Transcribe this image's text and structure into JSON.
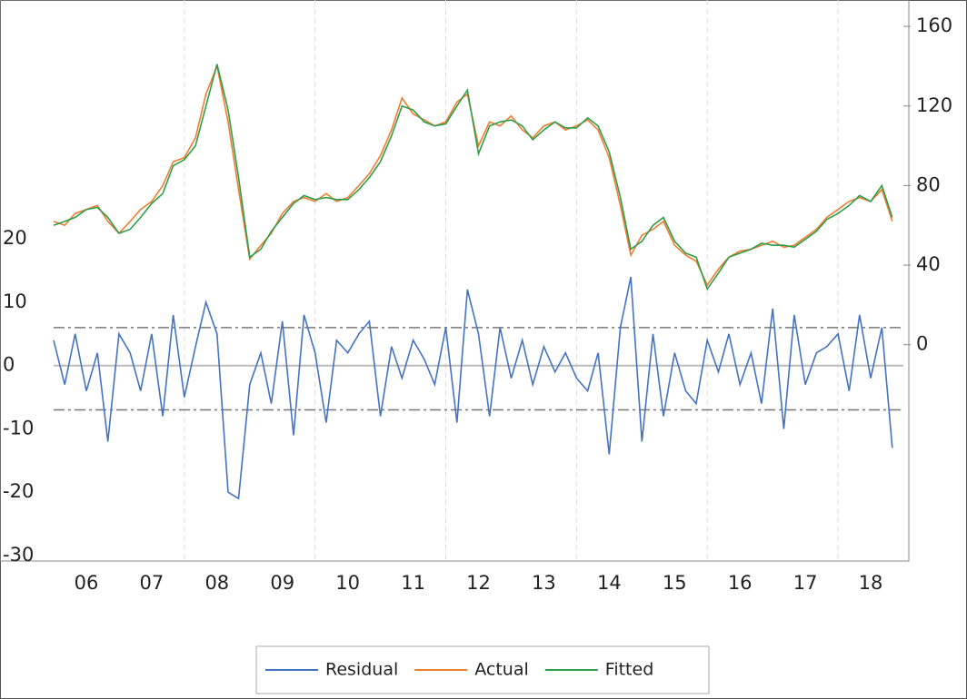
{
  "chart_data": {
    "type": "line",
    "x": [
      2006.0,
      2006.17,
      2006.33,
      2006.5,
      2006.67,
      2006.83,
      2007.0,
      2007.17,
      2007.33,
      2007.5,
      2007.67,
      2007.83,
      2008.0,
      2008.17,
      2008.33,
      2008.5,
      2008.67,
      2008.83,
      2009.0,
      2009.17,
      2009.33,
      2009.5,
      2009.67,
      2009.83,
      2010.0,
      2010.17,
      2010.33,
      2010.5,
      2010.67,
      2010.83,
      2011.0,
      2011.17,
      2011.33,
      2011.5,
      2011.67,
      2011.83,
      2012.0,
      2012.17,
      2012.33,
      2012.5,
      2012.67,
      2012.83,
      2013.0,
      2013.17,
      2013.33,
      2013.5,
      2013.67,
      2013.83,
      2014.0,
      2014.17,
      2014.33,
      2014.5,
      2014.67,
      2014.83,
      2015.0,
      2015.17,
      2015.33,
      2015.5,
      2015.67,
      2015.83,
      2016.0,
      2016.17,
      2016.33,
      2016.5,
      2016.67,
      2016.83,
      2017.0,
      2017.17,
      2017.33,
      2017.5,
      2017.67,
      2017.83,
      2018.0,
      2018.17,
      2018.33,
      2018.5,
      2018.67,
      2018.83
    ],
    "series": [
      {
        "name": "Residual",
        "color": "#4472c4",
        "axis": "y",
        "values": [
          4,
          -3,
          5,
          -4,
          2,
          -12,
          5,
          2,
          -4,
          5,
          -8,
          8,
          -5,
          3,
          10,
          5,
          -20,
          -21,
          -3,
          2,
          -6,
          7,
          -11,
          8,
          2,
          -9,
          4,
          2,
          5,
          7,
          -8,
          3,
          -2,
          4,
          1,
          -3,
          6,
          -9,
          12,
          5,
          -8,
          6,
          -2,
          4,
          -3,
          3,
          -1,
          2,
          -2,
          -4,
          2,
          -14,
          6,
          14,
          -12,
          5,
          -8,
          2,
          -4,
          -6,
          4,
          -1,
          5,
          -3,
          2,
          -6,
          9,
          -10,
          8,
          -3,
          2,
          3,
          5,
          -4,
          8,
          -2,
          6,
          -13
        ]
      },
      {
        "name": "Actual",
        "color": "#ed7d31",
        "axis": "y2",
        "values": [
          62,
          60,
          66,
          68,
          70,
          62,
          56,
          62,
          68,
          72,
          80,
          92,
          94,
          104,
          126,
          140,
          112,
          78,
          43,
          50,
          56,
          66,
          72,
          74,
          72,
          76,
          72,
          74,
          80,
          86,
          95,
          108,
          124,
          116,
          113,
          110,
          112,
          122,
          126,
          100,
          112,
          110,
          115,
          108,
          104,
          110,
          112,
          108,
          110,
          113,
          108,
          94,
          70,
          45,
          55,
          58,
          62,
          50,
          45,
          42,
          30,
          38,
          44,
          47,
          48,
          50,
          52,
          49,
          50,
          54,
          58,
          64,
          68,
          72,
          74,
          72,
          78,
          62
        ]
      },
      {
        "name": "Fitted",
        "color": "#2e9e4a",
        "axis": "y2",
        "values": [
          60,
          62,
          64,
          68,
          69,
          64,
          56,
          58,
          64,
          71,
          76,
          90,
          93,
          100,
          120,
          141,
          118,
          84,
          44,
          48,
          57,
          64,
          71,
          75,
          73,
          74,
          73,
          73,
          78,
          84,
          92,
          105,
          120,
          118,
          112,
          110,
          111,
          120,
          128,
          96,
          110,
          112,
          113,
          110,
          103,
          108,
          112,
          109,
          109,
          114,
          110,
          97,
          74,
          48,
          52,
          60,
          64,
          52,
          46,
          44,
          28,
          36,
          44,
          46,
          48,
          51,
          50,
          50,
          49,
          53,
          57,
          63,
          66,
          70,
          75,
          72,
          80,
          64
        ]
      }
    ],
    "xlim": [
      2006,
      2019
    ],
    "xticks": [
      {
        "value": 2006.5,
        "label": "06"
      },
      {
        "value": 2007.5,
        "label": "07"
      },
      {
        "value": 2008.5,
        "label": "08"
      },
      {
        "value": 2009.5,
        "label": "09"
      },
      {
        "value": 2010.5,
        "label": "10"
      },
      {
        "value": 2011.5,
        "label": "11"
      },
      {
        "value": 2012.5,
        "label": "12"
      },
      {
        "value": 2013.5,
        "label": "13"
      },
      {
        "value": 2014.5,
        "label": "14"
      },
      {
        "value": 2015.5,
        "label": "15"
      },
      {
        "value": 2016.5,
        "label": "16"
      },
      {
        "value": 2017.5,
        "label": "17"
      },
      {
        "value": 2018.5,
        "label": "18"
      }
    ],
    "xgrid": [
      2008,
      2010,
      2012,
      2014,
      2016,
      2018
    ],
    "ylim": [
      -30,
      57
    ],
    "yticks": [
      -30,
      -20,
      -10,
      0,
      10,
      20
    ],
    "y2lim": [
      -106,
      171
    ],
    "y2ticks": [
      0,
      40,
      80,
      120,
      160
    ],
    "se_band": [
      6,
      -7
    ],
    "legend": "bottom"
  }
}
